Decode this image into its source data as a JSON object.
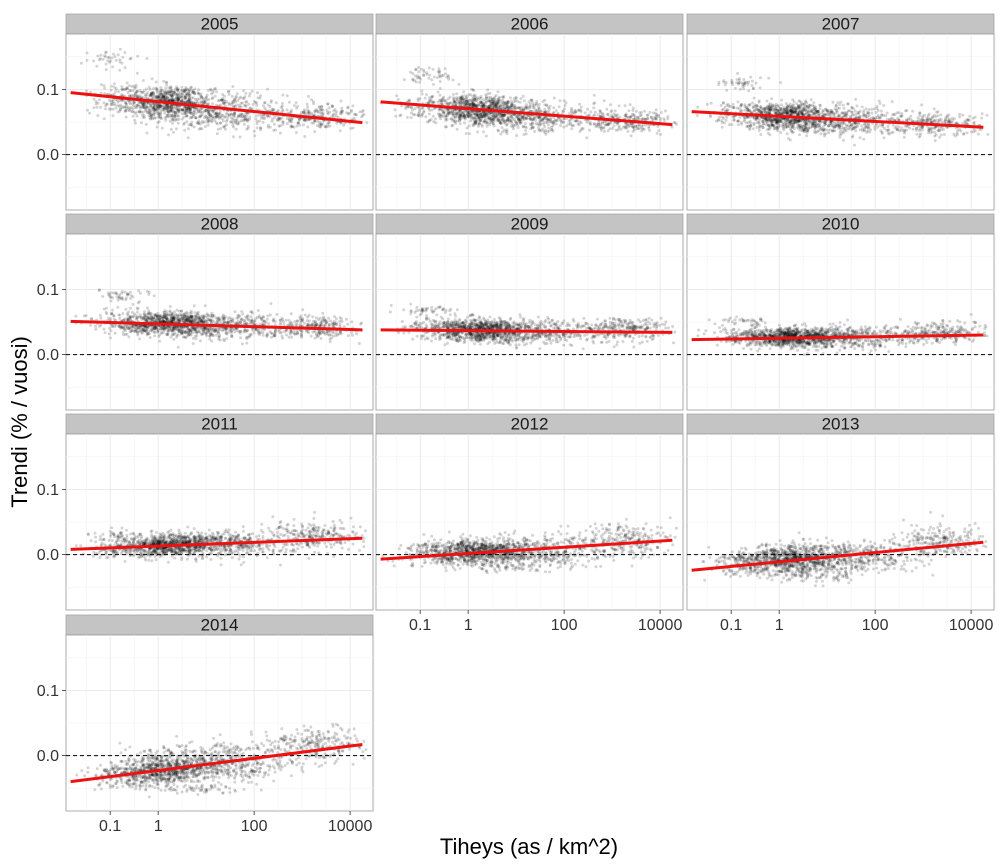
{
  "chart_data": {
    "type": "scatter",
    "layout": "faceted",
    "xlabel": "Tiheys (as / km^2)",
    "ylabel": "Trendi (% / vuosi)",
    "x_scale": "log10",
    "xlim": [
      0.012,
      30000
    ],
    "ylim": [
      -0.085,
      0.185
    ],
    "x_ticks": [
      0.1,
      1,
      100,
      10000
    ],
    "x_tick_labels": [
      "0.1",
      "1",
      "100",
      "10000"
    ],
    "y_ticks": [
      0.0,
      0.1
    ],
    "y_tick_labels": [
      "0.0",
      "0.1"
    ],
    "reference_line": {
      "y": 0.0,
      "style": "dashed",
      "color": "#000000"
    },
    "trend_line_color": "#ee1111",
    "point_color": "#000000",
    "strip_fill": "#c4c4c4",
    "grid": true,
    "legend": "none",
    "facets": [
      {
        "label": "2005",
        "trend": {
          "x": [
            0.015,
            18000
          ],
          "y": [
            0.095,
            0.049
          ]
        },
        "clusters": [
          {
            "x": 1.5,
            "y": 0.08,
            "sx": 0.45,
            "sy": 0.012,
            "n": 600
          },
          {
            "x": 20,
            "y": 0.065,
            "sx": 0.7,
            "sy": 0.014,
            "n": 500
          },
          {
            "x": 2000,
            "y": 0.058,
            "sx": 0.5,
            "sy": 0.01,
            "n": 250
          },
          {
            "x": 0.2,
            "y": 0.085,
            "sx": 0.4,
            "sy": 0.012,
            "n": 150
          },
          {
            "x": 0.1,
            "y": 0.145,
            "sx": 0.25,
            "sy": 0.006,
            "n": 40
          },
          {
            "x": 3,
            "y": 0.095,
            "sx": 0.4,
            "sy": 0.005,
            "n": 60
          }
        ]
      },
      {
        "label": "2006",
        "trend": {
          "x": [
            0.015,
            18000
          ],
          "y": [
            0.081,
            0.046
          ]
        },
        "clusters": [
          {
            "x": 1.5,
            "y": 0.068,
            "sx": 0.45,
            "sy": 0.011,
            "n": 600
          },
          {
            "x": 20,
            "y": 0.058,
            "sx": 0.7,
            "sy": 0.012,
            "n": 500
          },
          {
            "x": 2000,
            "y": 0.052,
            "sx": 0.5,
            "sy": 0.009,
            "n": 250
          },
          {
            "x": 0.2,
            "y": 0.075,
            "sx": 0.4,
            "sy": 0.011,
            "n": 150
          },
          {
            "x": 0.15,
            "y": 0.122,
            "sx": 0.3,
            "sy": 0.006,
            "n": 50
          },
          {
            "x": 3,
            "y": 0.082,
            "sx": 0.4,
            "sy": 0.005,
            "n": 60
          }
        ]
      },
      {
        "label": "2007",
        "trend": {
          "x": [
            0.015,
            18000
          ],
          "y": [
            0.066,
            0.042
          ]
        },
        "clusters": [
          {
            "x": 1.5,
            "y": 0.058,
            "sx": 0.45,
            "sy": 0.01,
            "n": 600
          },
          {
            "x": 20,
            "y": 0.052,
            "sx": 0.7,
            "sy": 0.011,
            "n": 500
          },
          {
            "x": 2000,
            "y": 0.048,
            "sx": 0.5,
            "sy": 0.009,
            "n": 250
          },
          {
            "x": 0.2,
            "y": 0.062,
            "sx": 0.4,
            "sy": 0.01,
            "n": 150
          },
          {
            "x": 0.15,
            "y": 0.11,
            "sx": 0.3,
            "sy": 0.005,
            "n": 45
          },
          {
            "x": 3,
            "y": 0.07,
            "sx": 0.4,
            "sy": 0.004,
            "n": 50
          }
        ]
      },
      {
        "label": "2008",
        "trend": {
          "x": [
            0.015,
            18000
          ],
          "y": [
            0.051,
            0.038
          ]
        },
        "clusters": [
          {
            "x": 1.5,
            "y": 0.047,
            "sx": 0.45,
            "sy": 0.009,
            "n": 600
          },
          {
            "x": 20,
            "y": 0.043,
            "sx": 0.7,
            "sy": 0.01,
            "n": 500
          },
          {
            "x": 2000,
            "y": 0.042,
            "sx": 0.5,
            "sy": 0.009,
            "n": 250
          },
          {
            "x": 0.2,
            "y": 0.05,
            "sx": 0.4,
            "sy": 0.009,
            "n": 150
          },
          {
            "x": 0.15,
            "y": 0.09,
            "sx": 0.3,
            "sy": 0.005,
            "n": 45
          },
          {
            "x": 3,
            "y": 0.058,
            "sx": 0.4,
            "sy": 0.004,
            "n": 50
          }
        ]
      },
      {
        "label": "2009",
        "trend": {
          "x": [
            0.015,
            18000
          ],
          "y": [
            0.038,
            0.034
          ]
        },
        "clusters": [
          {
            "x": 1.5,
            "y": 0.037,
            "sx": 0.45,
            "sy": 0.008,
            "n": 600
          },
          {
            "x": 20,
            "y": 0.035,
            "sx": 0.7,
            "sy": 0.009,
            "n": 500
          },
          {
            "x": 2000,
            "y": 0.038,
            "sx": 0.5,
            "sy": 0.009,
            "n": 250
          },
          {
            "x": 0.2,
            "y": 0.04,
            "sx": 0.4,
            "sy": 0.008,
            "n": 150
          },
          {
            "x": 0.15,
            "y": 0.068,
            "sx": 0.3,
            "sy": 0.004,
            "n": 45
          },
          {
            "x": 3,
            "y": 0.047,
            "sx": 0.4,
            "sy": 0.004,
            "n": 50
          }
        ]
      },
      {
        "label": "2010",
        "trend": {
          "x": [
            0.015,
            18000
          ],
          "y": [
            0.023,
            0.03
          ]
        },
        "clusters": [
          {
            "x": 1.5,
            "y": 0.026,
            "sx": 0.45,
            "sy": 0.007,
            "n": 600
          },
          {
            "x": 20,
            "y": 0.026,
            "sx": 0.7,
            "sy": 0.009,
            "n": 500
          },
          {
            "x": 2000,
            "y": 0.034,
            "sx": 0.5,
            "sy": 0.009,
            "n": 250
          },
          {
            "x": 0.2,
            "y": 0.028,
            "sx": 0.4,
            "sy": 0.007,
            "n": 150
          },
          {
            "x": 0.15,
            "y": 0.05,
            "sx": 0.3,
            "sy": 0.004,
            "n": 40
          },
          {
            "x": 3,
            "y": 0.036,
            "sx": 0.4,
            "sy": 0.004,
            "n": 50
          }
        ]
      },
      {
        "label": "2011",
        "trend": {
          "x": [
            0.015,
            18000
          ],
          "y": [
            0.008,
            0.025
          ]
        },
        "clusters": [
          {
            "x": 1.5,
            "y": 0.013,
            "sx": 0.45,
            "sy": 0.008,
            "n": 600
          },
          {
            "x": 20,
            "y": 0.016,
            "sx": 0.7,
            "sy": 0.01,
            "n": 500
          },
          {
            "x": 2000,
            "y": 0.028,
            "sx": 0.5,
            "sy": 0.011,
            "n": 250
          },
          {
            "x": 0.2,
            "y": 0.01,
            "sx": 0.4,
            "sy": 0.008,
            "n": 150
          },
          {
            "x": 0.15,
            "y": 0.03,
            "sx": 0.3,
            "sy": 0.004,
            "n": 40
          },
          {
            "x": 3,
            "y": 0.022,
            "sx": 0.4,
            "sy": 0.004,
            "n": 50
          }
        ]
      },
      {
        "label": "2012",
        "trend": {
          "x": [
            0.015,
            18000
          ],
          "y": [
            -0.007,
            0.022
          ]
        },
        "clusters": [
          {
            "x": 1.5,
            "y": 0.004,
            "sx": 0.45,
            "sy": 0.009,
            "n": 600
          },
          {
            "x": 20,
            "y": 0.006,
            "sx": 0.7,
            "sy": 0.012,
            "n": 500
          },
          {
            "x": 2000,
            "y": 0.022,
            "sx": 0.5,
            "sy": 0.012,
            "n": 250
          },
          {
            "x": 0.2,
            "y": -0.002,
            "sx": 0.4,
            "sy": 0.008,
            "n": 150
          },
          {
            "x": 0.15,
            "y": 0.012,
            "sx": 0.3,
            "sy": 0.004,
            "n": 40
          },
          {
            "x": 8,
            "y": -0.02,
            "sx": 0.4,
            "sy": 0.004,
            "n": 50
          }
        ]
      },
      {
        "label": "2013",
        "trend": {
          "x": [
            0.015,
            18000
          ],
          "y": [
            -0.024,
            0.019
          ]
        },
        "clusters": [
          {
            "x": 1.5,
            "y": -0.008,
            "sx": 0.45,
            "sy": 0.011,
            "n": 600
          },
          {
            "x": 20,
            "y": -0.004,
            "sx": 0.7,
            "sy": 0.013,
            "n": 500
          },
          {
            "x": 2000,
            "y": 0.018,
            "sx": 0.5,
            "sy": 0.013,
            "n": 250
          },
          {
            "x": 0.2,
            "y": -0.016,
            "sx": 0.4,
            "sy": 0.009,
            "n": 150
          },
          {
            "x": 0.15,
            "y": -0.005,
            "sx": 0.3,
            "sy": 0.004,
            "n": 40
          },
          {
            "x": 8,
            "y": -0.035,
            "sx": 0.4,
            "sy": 0.005,
            "n": 50
          }
        ]
      },
      {
        "label": "2014",
        "trend": {
          "x": [
            0.015,
            18000
          ],
          "y": [
            -0.04,
            0.017
          ]
        },
        "clusters": [
          {
            "x": 1.5,
            "y": -0.022,
            "sx": 0.45,
            "sy": 0.013,
            "n": 600
          },
          {
            "x": 20,
            "y": -0.012,
            "sx": 0.7,
            "sy": 0.015,
            "n": 500
          },
          {
            "x": 2000,
            "y": 0.017,
            "sx": 0.5,
            "sy": 0.014,
            "n": 250
          },
          {
            "x": 0.2,
            "y": -0.032,
            "sx": 0.4,
            "sy": 0.01,
            "n": 150
          },
          {
            "x": 0.15,
            "y": -0.022,
            "sx": 0.3,
            "sy": 0.004,
            "n": 40
          },
          {
            "x": 8,
            "y": -0.05,
            "sx": 0.4,
            "sy": 0.005,
            "n": 50
          }
        ]
      }
    ]
  }
}
